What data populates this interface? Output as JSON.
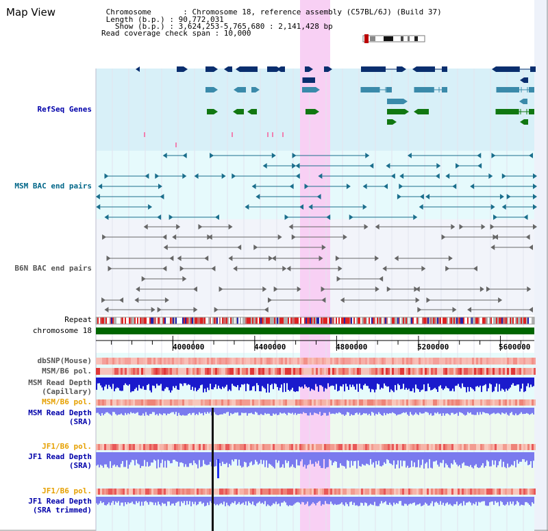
{
  "header": {
    "title": "Map View",
    "info_lines": [
      " Chromosome       : Chromosome 18, reference assembly (C57BL/6J) (Build 37)",
      " Length (b.p.) : 90,772,031",
      "   Show (b.p.) : 3,624,253-5,765,680 : 2,141,428 bp",
      "Read coverage check span : 10,000"
    ]
  },
  "tracks": {
    "refseq": {
      "label": "RefSeq Genes",
      "color": "#0000aa"
    },
    "msm_bac": {
      "label": "MSM BAC end pairs",
      "color": "#006688"
    },
    "b6n_bac": {
      "label": "B6N BAC end pairs",
      "color": "#555555"
    },
    "repeat": {
      "label": "Repeat",
      "color": "#000000"
    },
    "chromosome": {
      "label": "chromosome 18",
      "color": "#000000"
    },
    "dbsnp": {
      "label": "dbSNP(Mouse)",
      "color": "#444444"
    },
    "msm_b6_pol": {
      "label": "MSM/B6 pol.",
      "color": "#444444"
    },
    "msm_depth_cap": {
      "label": "MSM Read Depth",
      "sub": "(Capillary)",
      "color": "#444444"
    },
    "msm_b6_pol_sra": {
      "label": "MSM/B6 pol.",
      "color": "#e6a000"
    },
    "msm_depth_sra": {
      "label": "MSM Read Depth",
      "sub": "(SRA)",
      "color": "#0000aa"
    },
    "jf1_b6_pol": {
      "label": "JF1/B6 pol.",
      "color": "#e6a000"
    },
    "jf1_depth_sra": {
      "label": "JF1 Read Depth",
      "sub": "(SRA)",
      "color": "#0000aa"
    },
    "jf1_b6_pol2": {
      "label": "JF1/B6 pol.",
      "color": "#e6a000"
    },
    "jf1_depth_trim": {
      "label": "JF1 Read Depth",
      "sub": "(SRA trimmed)",
      "color": "#0000aa"
    }
  },
  "axis": {
    "range_bp": [
      3624253,
      5765680
    ],
    "ticks": [
      "4000000",
      "4400000",
      "4800000",
      "5200000",
      "5600000"
    ],
    "tick_values": [
      4000000,
      4400000,
      4800000,
      5200000,
      5600000
    ]
  },
  "colors": {
    "highlight": "#f8d0f4",
    "refseq_bg": "#d8f0f8",
    "msm_bg": "#e6fafc",
    "b6n_bg": "#f2f4fa",
    "gene_dark": "#0a2e6e",
    "gene_teal": "#3a8aaa",
    "gene_green": "#117711",
    "chromosome_bar": "#006600",
    "depth_blue": "#1a1acc",
    "depth_lavender": "#7a7aee"
  }
}
